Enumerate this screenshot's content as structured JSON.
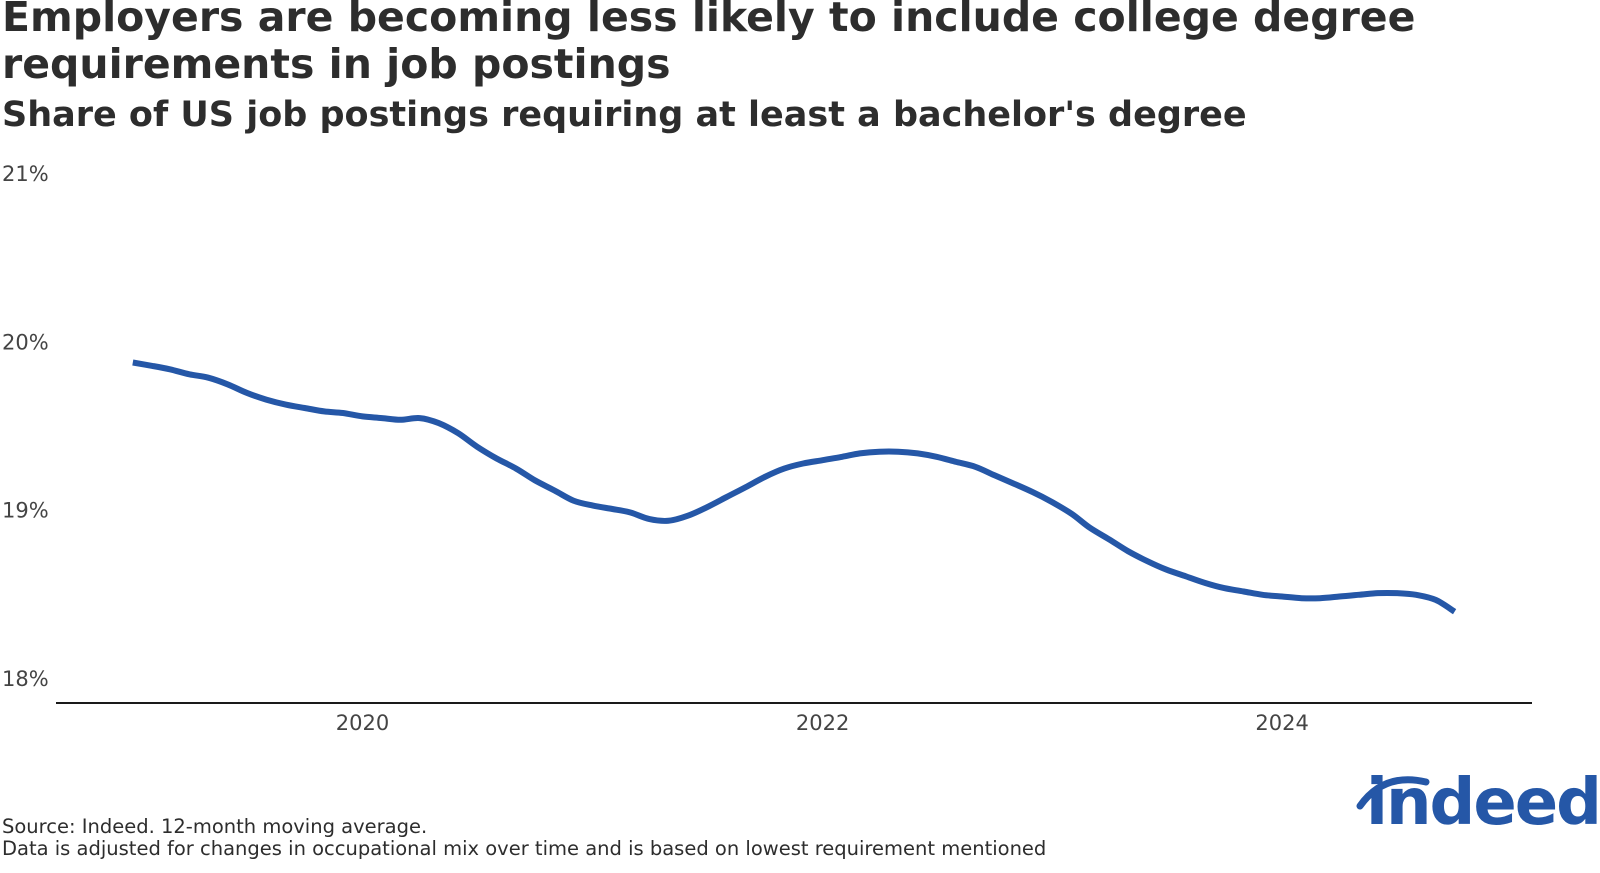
{
  "chart_data": {
    "type": "line",
    "title": "Employers are becoming less likely to include college degree requirements in job postings",
    "subtitle": "Share of US job postings requiring at least a bachelor's degree",
    "xlabel": "",
    "ylabel": "",
    "y_ticks": [
      "18%",
      "19%",
      "20%",
      "21%"
    ],
    "ylim": [
      18,
      21
    ],
    "x_ticks": [
      "2020",
      "2022",
      "2024"
    ],
    "xlim": [
      "2018-09-01",
      "2025-02-01"
    ],
    "grid": false,
    "legend": "none",
    "series": [
      {
        "color": "#2557a7",
        "x": [
          "2019-01",
          "2019-02",
          "2019-03",
          "2019-04",
          "2019-05",
          "2019-06",
          "2019-07",
          "2019-08",
          "2019-09",
          "2019-10",
          "2019-11",
          "2019-12",
          "2020-01",
          "2020-02",
          "2020-03",
          "2020-04",
          "2020-05",
          "2020-06",
          "2020-07",
          "2020-08",
          "2020-09",
          "2020-10",
          "2020-11",
          "2020-12",
          "2021-01",
          "2021-02",
          "2021-03",
          "2021-04",
          "2021-05",
          "2021-06",
          "2021-07",
          "2021-08",
          "2021-09",
          "2021-10",
          "2021-11",
          "2021-12",
          "2022-01",
          "2022-02",
          "2022-03",
          "2022-04",
          "2022-05",
          "2022-06",
          "2022-07",
          "2022-08",
          "2022-09",
          "2022-10",
          "2022-11",
          "2022-12",
          "2023-01",
          "2023-02",
          "2023-03",
          "2023-04",
          "2023-05",
          "2023-06",
          "2023-07",
          "2023-08",
          "2023-09",
          "2023-10",
          "2023-11",
          "2023-12",
          "2024-01",
          "2024-02",
          "2024-03",
          "2024-04",
          "2024-05",
          "2024-06",
          "2024-07",
          "2024-08",
          "2024-09",
          "2024-10"
        ],
        "values": [
          19.88,
          19.86,
          19.84,
          19.81,
          19.79,
          19.75,
          19.7,
          19.66,
          19.63,
          19.61,
          19.59,
          19.58,
          19.56,
          19.55,
          19.54,
          19.55,
          19.52,
          19.46,
          19.38,
          19.31,
          19.25,
          19.18,
          19.12,
          19.06,
          19.03,
          19.01,
          18.99,
          18.95,
          18.94,
          18.97,
          19.02,
          19.08,
          19.14,
          19.2,
          19.25,
          19.28,
          19.3,
          19.32,
          19.34,
          19.35,
          19.35,
          19.34,
          19.32,
          19.29,
          19.26,
          19.21,
          19.16,
          19.11,
          19.05,
          18.98,
          18.9,
          18.83,
          18.76,
          18.7,
          18.65,
          18.61,
          18.57,
          18.54,
          18.52,
          18.5,
          18.49,
          18.48,
          18.48,
          18.49,
          18.5,
          18.51,
          18.51,
          18.5,
          18.47,
          18.4
        ]
      }
    ]
  },
  "footer": {
    "source": "Source: Indeed. 12-month moving average.",
    "note": "Data is adjusted for changes in occupational mix over time and is based on lowest requirement mentioned",
    "logo": "indeed"
  }
}
